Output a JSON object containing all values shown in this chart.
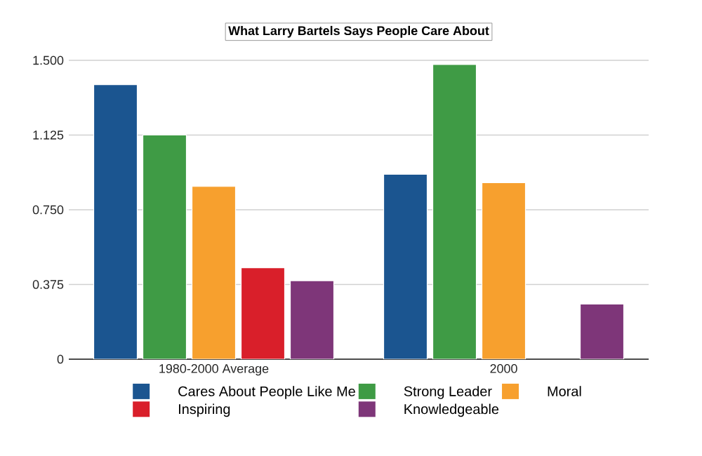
{
  "chart_data": {
    "type": "bar",
    "title": "What Larry Bartels Says People Care About",
    "categories": [
      "1980-2000 Average",
      "2000"
    ],
    "series": [
      {
        "name": "Cares About People Like Me",
        "color": "#1b5590",
        "values": [
          1.378,
          0.928
        ]
      },
      {
        "name": "Strong Leader",
        "color": "#3f9b45",
        "values": [
          1.125,
          1.479
        ]
      },
      {
        "name": "Moral",
        "color": "#f7a02e",
        "values": [
          0.867,
          0.886
        ]
      },
      {
        "name": "Inspiring",
        "color": "#d91f2a",
        "values": [
          0.459,
          null
        ]
      },
      {
        "name": "Knowledgeable",
        "color": "#7e3679",
        "values": [
          0.394,
          0.277
        ]
      }
    ],
    "ylim": [
      0,
      1.5
    ],
    "yticks": [
      0,
      {
        "value": 0.375,
        "label": "0.375"
      },
      {
        "value": 0.75,
        "label": "0.750"
      },
      {
        "value": 1.125,
        "label": "1.125"
      },
      {
        "value": 1.5,
        "label": "1.500"
      }
    ],
    "grid": "y",
    "legend": "bottom"
  }
}
